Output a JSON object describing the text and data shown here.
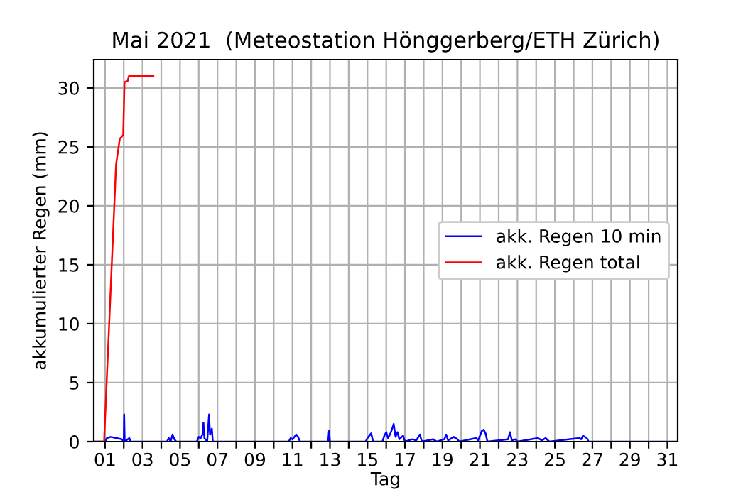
{
  "chart_data": {
    "type": "line",
    "title": "Mai 2021  (Meteostation Hönggerberg/ETH Zürich)",
    "xlabel": "Tag",
    "ylabel": "akkumulierter Regen (mm)",
    "xlim": [
      0.4,
      31.55
    ],
    "ylim": [
      0,
      32.4
    ],
    "xticks": [
      {
        "value": 1,
        "label": "01"
      },
      {
        "value": 2,
        "label": null
      },
      {
        "value": 3,
        "label": "03"
      },
      {
        "value": 4,
        "label": null
      },
      {
        "value": 5,
        "label": "05"
      },
      {
        "value": 6,
        "label": null
      },
      {
        "value": 7,
        "label": "07"
      },
      {
        "value": 8,
        "label": null
      },
      {
        "value": 9,
        "label": "09"
      },
      {
        "value": 10,
        "label": null
      },
      {
        "value": 11,
        "label": "11"
      },
      {
        "value": 12,
        "label": null
      },
      {
        "value": 13,
        "label": "13"
      },
      {
        "value": 14,
        "label": null
      },
      {
        "value": 15,
        "label": "15"
      },
      {
        "value": 16,
        "label": null
      },
      {
        "value": 17,
        "label": "17"
      },
      {
        "value": 18,
        "label": null
      },
      {
        "value": 19,
        "label": "19"
      },
      {
        "value": 20,
        "label": null
      },
      {
        "value": 21,
        "label": "21"
      },
      {
        "value": 22,
        "label": null
      },
      {
        "value": 23,
        "label": "23"
      },
      {
        "value": 24,
        "label": null
      },
      {
        "value": 25,
        "label": "25"
      },
      {
        "value": 26,
        "label": null
      },
      {
        "value": 27,
        "label": "27"
      },
      {
        "value": 28,
        "label": null
      },
      {
        "value": 29,
        "label": "29"
      },
      {
        "value": 30,
        "label": null
      },
      {
        "value": 31,
        "label": "31"
      }
    ],
    "yticks": [
      0,
      5,
      10,
      15,
      20,
      25,
      30
    ],
    "grid": true,
    "legend": "center right",
    "line_style": "solid",
    "marker": "none",
    "series": [
      {
        "name": "akk. Regen 10 min",
        "color": "#0000ff",
        "x": [
          0.4,
          1.0,
          1.1,
          1.3,
          1.6,
          1.9,
          2.0,
          2.02,
          2.05,
          2.3,
          2.35,
          4.3,
          4.4,
          4.5,
          4.6,
          4.7,
          4.8,
          5.9,
          6.0,
          6.1,
          6.2,
          6.25,
          6.3,
          6.45,
          6.55,
          6.6,
          6.7,
          6.75,
          10.8,
          10.9,
          11.0,
          11.2,
          11.3,
          11.4,
          12.9,
          12.95,
          13.0,
          14.9,
          15.0,
          15.2,
          15.3,
          15.8,
          15.9,
          16.0,
          16.1,
          16.2,
          16.3,
          16.4,
          16.5,
          16.6,
          16.7,
          16.9,
          17.0,
          17.4,
          17.6,
          17.8,
          17.9,
          18.5,
          18.7,
          19.1,
          19.2,
          19.3,
          19.6,
          19.8,
          19.9,
          20.8,
          20.9,
          21.0,
          21.1,
          21.2,
          21.3,
          21.4,
          22.5,
          22.6,
          22.7,
          22.9,
          23.0,
          24.1,
          24.3,
          24.5,
          24.7,
          26.3,
          26.4,
          26.5,
          26.7,
          26.8,
          31.55
        ],
        "values": [
          0,
          0,
          0.3,
          0.4,
          0.3,
          0.2,
          0,
          2.3,
          0,
          0.3,
          0,
          0,
          0.3,
          0,
          0.6,
          0.2,
          0,
          0,
          0.4,
          0.3,
          0.6,
          1.6,
          0.3,
          0,
          2.3,
          0.6,
          1.1,
          0,
          0,
          0.3,
          0.2,
          0.6,
          0.4,
          0,
          0,
          0.9,
          0,
          0,
          0.3,
          0.7,
          0,
          0,
          0.5,
          0.8,
          0.3,
          0.6,
          1.0,
          1.5,
          0.4,
          0.8,
          0.2,
          0.5,
          0,
          0.2,
          0.1,
          0.6,
          0,
          0.2,
          0,
          0.2,
          0.6,
          0.1,
          0.4,
          0.2,
          0,
          0.3,
          0.1,
          0.5,
          0.9,
          1.0,
          0.7,
          0,
          0.2,
          0.8,
          0.1,
          0.2,
          0,
          0.3,
          0.1,
          0.3,
          0,
          0.3,
          0.2,
          0.5,
          0.3,
          0,
          0
        ]
      },
      {
        "name": "akk. Regen total",
        "color": "#ff0000",
        "x": [
          0.4,
          0.95,
          1.59,
          1.79,
          1.97,
          2.04,
          2.21,
          2.27,
          3.58
        ],
        "values": [
          0,
          0,
          23.5,
          25.7,
          26,
          30.5,
          30.6,
          31,
          31
        ]
      }
    ]
  }
}
